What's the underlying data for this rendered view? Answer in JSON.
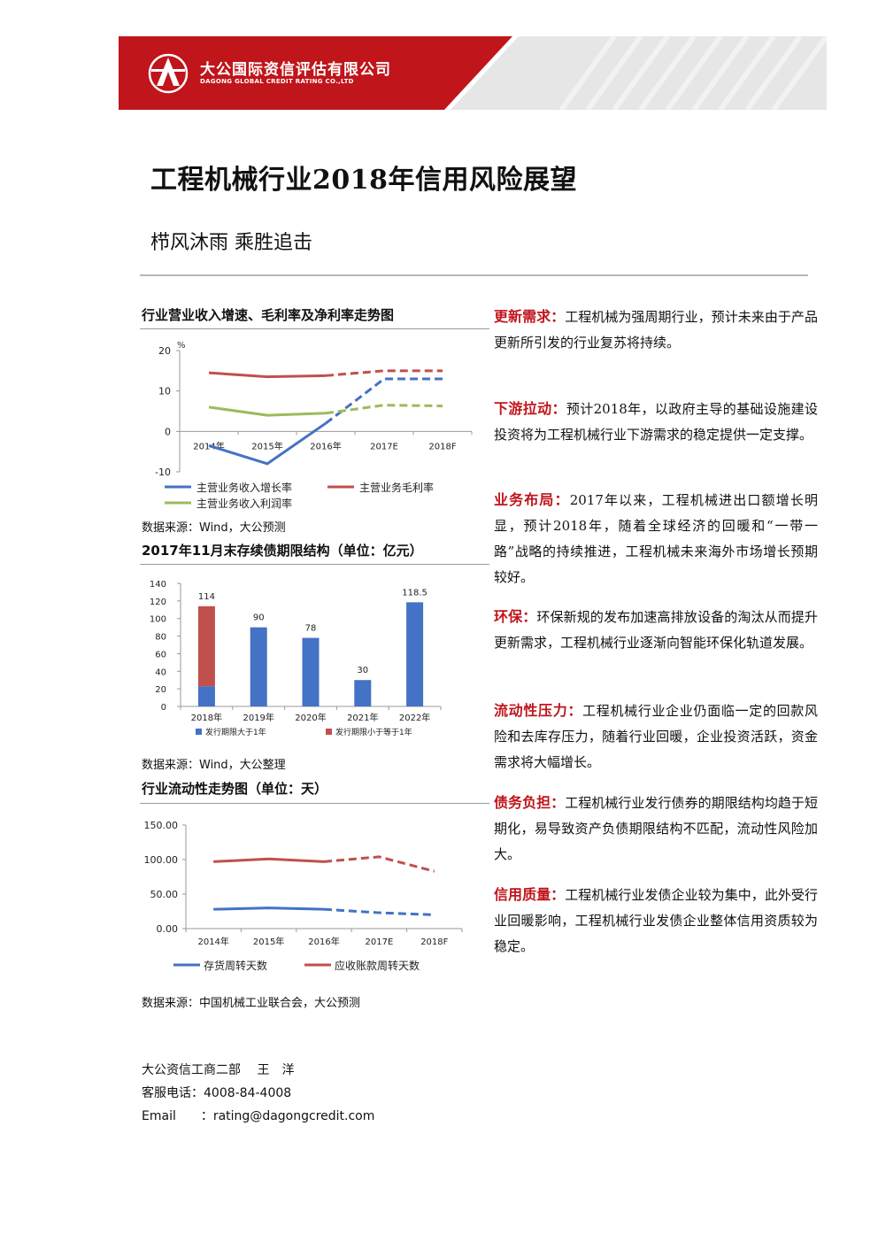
{
  "header": {
    "company_cn": "大公国际资信评估有限公司",
    "company_en": "DAGONG GLOBAL CREDIT RATING CO.,LTD",
    "brand_color": "#c0151b"
  },
  "title": "工程机械行业2018年信用风险展望",
  "subtitle": "栉风沐雨 乘胜追击",
  "chart1": {
    "title": "行业营业收入增速、毛利率及净利率走势图",
    "unit": "%",
    "source": "数据来源：Wind，大公预测"
  },
  "chart2": {
    "title": "2017年11月末存续债期限结构（单位：亿元）",
    "source": "数据来源：Wind，大公整理"
  },
  "chart3": {
    "title": "行业流动性走势图（单位：天）",
    "source": "数据来源：中国机械工业联合会，大公预测"
  },
  "chart_data": [
    {
      "type": "line",
      "categories": [
        "2014年",
        "2015年",
        "2016年",
        "2017E",
        "2018F"
      ],
      "ylim": [
        -10,
        20
      ],
      "yticks": [
        "20",
        "10",
        "0",
        "-10"
      ],
      "dashed_from_index": 2,
      "series": [
        {
          "name": "主营业务收入增长率",
          "color": "#4472c4",
          "values": [
            -3.5,
            -8,
            2,
            13,
            13
          ]
        },
        {
          "name": "主营业务毛利率",
          "color": "#c0504d",
          "values": [
            14.5,
            13.5,
            13.8,
            15,
            15
          ]
        },
        {
          "name": "主营业务收入利润率",
          "color": "#9bbb59",
          "values": [
            6,
            4,
            4.5,
            6.5,
            6.3
          ]
        }
      ]
    },
    {
      "type": "bar",
      "categories": [
        "2018年",
        "2019年",
        "2020年",
        "2021年",
        "2022年"
      ],
      "ylim": [
        0,
        140
      ],
      "yticks": [
        "140",
        "120",
        "100",
        "80",
        "60",
        "40",
        "20",
        "0"
      ],
      "totals_labels": [
        "114",
        "90",
        "78",
        "30",
        "118.5"
      ],
      "series": [
        {
          "name": "发行期限大于1年",
          "color": "#4472c4",
          "values": [
            23,
            90,
            78,
            30,
            118.5
          ]
        },
        {
          "name": "发行期限小于等于1年",
          "color": "#c0504d",
          "values": [
            91,
            0,
            0,
            0,
            0
          ]
        }
      ]
    },
    {
      "type": "line",
      "categories": [
        "2014年",
        "2015年",
        "2016年",
        "2017E",
        "2018F"
      ],
      "ylim": [
        0,
        150
      ],
      "yticks": [
        "150.00",
        "100.00",
        "50.00",
        "0.00"
      ],
      "dashed_from_index": 2,
      "series": [
        {
          "name": "存货周转天数",
          "color": "#4472c4",
          "values": [
            28,
            30,
            28,
            23,
            20
          ]
        },
        {
          "name": "应收账款周转天数",
          "color": "#c0504d",
          "values": [
            97,
            101,
            97,
            104,
            83
          ]
        }
      ]
    }
  ],
  "paragraphs": [
    {
      "keyword": "更新需求：",
      "text": "工程机械为强周期行业，预计未来由于产品更新所引发的行业复苏将持续。"
    },
    {
      "keyword": "下游拉动：",
      "text": "预计2018年，以政府主导的基础设施建设投资将为工程机械行业下游需求的稳定提供一定支撑。"
    },
    {
      "keyword": "业务布局：",
      "text": "2017年以来，工程机械进出口额增长明显，预计2018年，随着全球经济的回暖和“一带一路”战略的持续推进，工程机械未来海外市场增长预期较好。"
    },
    {
      "keyword": "环保：",
      "text": "环保新规的发布加速高排放设备的淘汰从而提升更新需求，工程机械行业逐渐向智能环保化轨道发展。"
    },
    {
      "keyword": "流动性压力：",
      "text": "工程机械行业企业仍面临一定的回款风险和去库存压力，随着行业回暖，企业投资活跃，资金需求将大幅增长。"
    },
    {
      "keyword": "债务负担：",
      "text": "工程机械行业发行债券的期限结构均趋于短期化，易导致资产负债期限结构不匹配，流动性风险加大。"
    },
    {
      "keyword": "信用质量：",
      "text": "工程机械行业发债企业较为集中，此外受行业回暖影响，工程机械行业发债企业整体信用资质较为稳定。"
    }
  ],
  "footer": {
    "dept": "大公资信工商二部　 王　洋",
    "phone": "客服电话：4008-84-4008",
    "email": "Email　　：rating@dagongcredit.com"
  }
}
